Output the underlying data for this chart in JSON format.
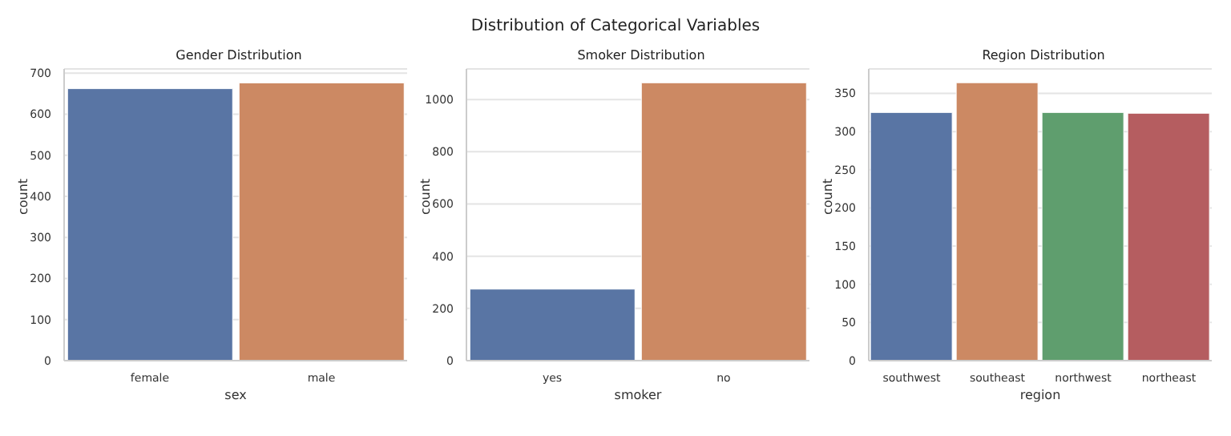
{
  "chart_data": [
    {
      "type": "other",
      "title": "Distribution of Categorical Variables"
    },
    {
      "type": "bar",
      "title": "Gender Distribution",
      "categories": [
        "female",
        "male"
      ],
      "values": [
        662,
        676
      ],
      "colors": [
        "#5975a4",
        "#cc8963"
      ],
      "xlabel": "sex",
      "ylabel": "count",
      "ylim": [
        0,
        710
      ],
      "yticks": [
        0,
        100,
        200,
        300,
        400,
        500,
        600,
        700
      ],
      "grid": "y",
      "legend": false
    },
    {
      "type": "bar",
      "title": "Smoker Distribution",
      "categories": [
        "yes",
        "no"
      ],
      "values": [
        274,
        1064
      ],
      "colors": [
        "#5975a4",
        "#cc8963"
      ],
      "xlabel": "smoker",
      "ylabel": "count",
      "ylim": [
        0,
        1117
      ],
      "yticks": [
        0,
        200,
        400,
        600,
        800,
        1000
      ],
      "grid": "y",
      "legend": false
    },
    {
      "type": "bar",
      "title": "Region Distribution",
      "categories": [
        "southwest",
        "southeast",
        "northwest",
        "northeast"
      ],
      "values": [
        325,
        364,
        325,
        324
      ],
      "colors": [
        "#5975a4",
        "#cc8963",
        "#5f9e6e",
        "#b55d60"
      ],
      "xlabel": "region",
      "ylabel": "count",
      "ylim": [
        0,
        382
      ],
      "yticks": [
        0,
        50,
        100,
        150,
        200,
        250,
        300,
        350
      ],
      "grid": "y",
      "legend": false
    }
  ]
}
